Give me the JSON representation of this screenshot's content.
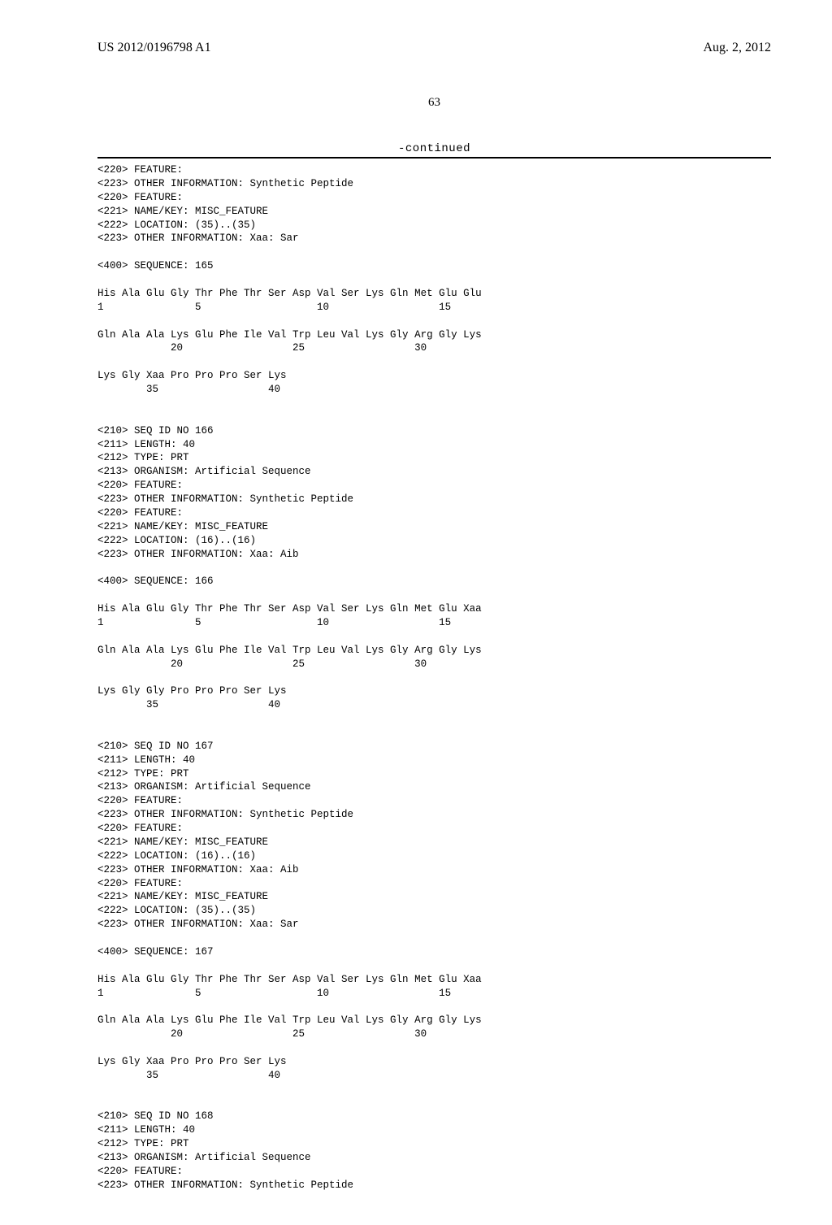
{
  "header": {
    "pub_no": "US 2012/0196798 A1",
    "pub_date": "Aug. 2, 2012"
  },
  "page_number": "63",
  "continued_label": "-continued",
  "entries": [
    {
      "annotations": [
        "<220> FEATURE:",
        "<223> OTHER INFORMATION: Synthetic Peptide",
        "<220> FEATURE:",
        "<221> NAME/KEY: MISC_FEATURE",
        "<222> LOCATION: (35)..(35)",
        "<223> OTHER INFORMATION: Xaa: Sar"
      ],
      "sequence_header": "<400> SEQUENCE: 165",
      "sequence_lines": [
        {
          "residues": "His Ala Glu Gly Thr Phe Thr Ser Asp Val Ser Lys Gln Met Glu Glu",
          "numbers": "1               5                   10                  15"
        },
        {
          "residues": "Gln Ala Ala Lys Glu Phe Ile Val Trp Leu Val Lys Gly Arg Gly Lys",
          "numbers": "            20                  25                  30"
        },
        {
          "residues": "Lys Gly Xaa Pro Pro Pro Ser Lys",
          "numbers": "        35                  40"
        }
      ]
    },
    {
      "annotations": [
        "<210> SEQ ID NO 166",
        "<211> LENGTH: 40",
        "<212> TYPE: PRT",
        "<213> ORGANISM: Artificial Sequence",
        "<220> FEATURE:",
        "<223> OTHER INFORMATION: Synthetic Peptide",
        "<220> FEATURE:",
        "<221> NAME/KEY: MISC_FEATURE",
        "<222> LOCATION: (16)..(16)",
        "<223> OTHER INFORMATION: Xaa: Aib"
      ],
      "sequence_header": "<400> SEQUENCE: 166",
      "sequence_lines": [
        {
          "residues": "His Ala Glu Gly Thr Phe Thr Ser Asp Val Ser Lys Gln Met Glu Xaa",
          "numbers": "1               5                   10                  15"
        },
        {
          "residues": "Gln Ala Ala Lys Glu Phe Ile Val Trp Leu Val Lys Gly Arg Gly Lys",
          "numbers": "            20                  25                  30"
        },
        {
          "residues": "Lys Gly Gly Pro Pro Pro Ser Lys",
          "numbers": "        35                  40"
        }
      ]
    },
    {
      "annotations": [
        "<210> SEQ ID NO 167",
        "<211> LENGTH: 40",
        "<212> TYPE: PRT",
        "<213> ORGANISM: Artificial Sequence",
        "<220> FEATURE:",
        "<223> OTHER INFORMATION: Synthetic Peptide",
        "<220> FEATURE:",
        "<221> NAME/KEY: MISC_FEATURE",
        "<222> LOCATION: (16)..(16)",
        "<223> OTHER INFORMATION: Xaa: Aib",
        "<220> FEATURE:",
        "<221> NAME/KEY: MISC_FEATURE",
        "<222> LOCATION: (35)..(35)",
        "<223> OTHER INFORMATION: Xaa: Sar"
      ],
      "sequence_header": "<400> SEQUENCE: 167",
      "sequence_lines": [
        {
          "residues": "His Ala Glu Gly Thr Phe Thr Ser Asp Val Ser Lys Gln Met Glu Xaa",
          "numbers": "1               5                   10                  15"
        },
        {
          "residues": "Gln Ala Ala Lys Glu Phe Ile Val Trp Leu Val Lys Gly Arg Gly Lys",
          "numbers": "            20                  25                  30"
        },
        {
          "residues": "Lys Gly Xaa Pro Pro Pro Ser Lys",
          "numbers": "        35                  40"
        }
      ]
    },
    {
      "annotations": [
        "<210> SEQ ID NO 168",
        "<211> LENGTH: 40",
        "<212> TYPE: PRT",
        "<213> ORGANISM: Artificial Sequence",
        "<220> FEATURE:",
        "<223> OTHER INFORMATION: Synthetic Peptide"
      ],
      "sequence_header": "",
      "sequence_lines": []
    }
  ]
}
